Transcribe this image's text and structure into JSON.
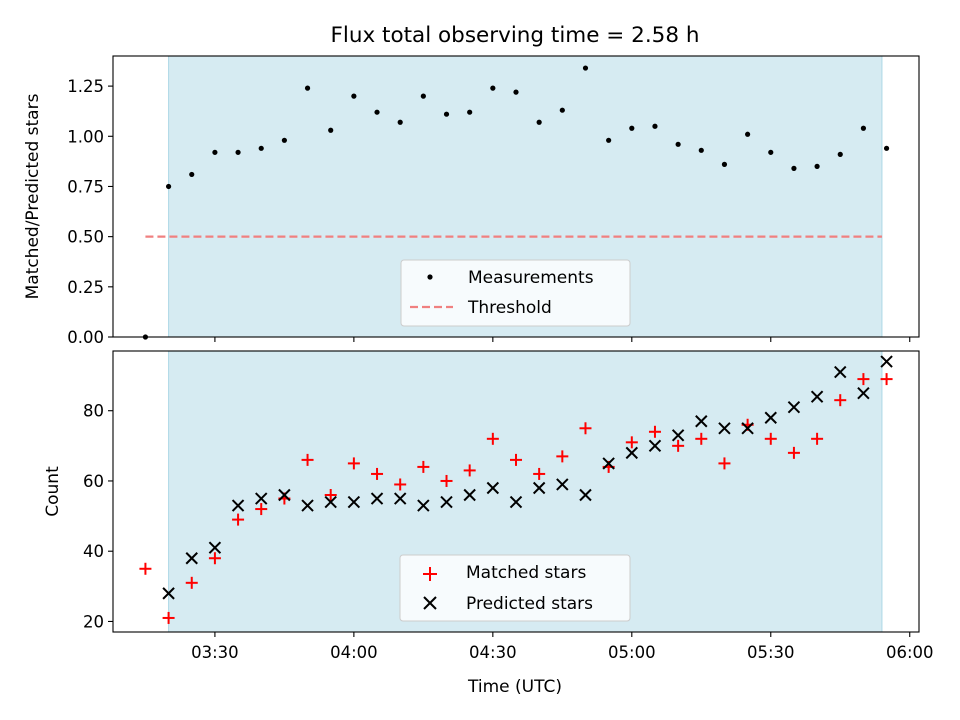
{
  "figure": {
    "title": "Flux total observing time = 2.58 h",
    "xlabel": "Time (UTC)"
  },
  "colors": {
    "shade": "#add8e6",
    "measurement": "#000000",
    "threshold": "#f08080",
    "matched": "#ff0000",
    "predicted": "#000000"
  },
  "chart_data": [
    {
      "type": "scatter",
      "ylabel": "Matched/Predicted stars",
      "ylim": [
        0,
        1.4
      ],
      "yticks": [
        0.0,
        0.25,
        0.5,
        0.75,
        1.0,
        1.25
      ],
      "ytick_labels": [
        "0.00",
        "0.25",
        "0.50",
        "0.75",
        "1.00",
        "1.25"
      ],
      "xlim": [
        "03:08",
        "06:02"
      ],
      "xticks": [
        "03:30",
        "04:00",
        "04:30",
        "05:00",
        "05:30",
        "06:00"
      ],
      "shaded_span": [
        "03:20",
        "05:54"
      ],
      "legend": {
        "position": "lower center",
        "entries": [
          "Measurements",
          "Threshold"
        ]
      },
      "threshold": {
        "name": "Threshold",
        "value": 0.5,
        "x": [
          "03:15",
          "05:54"
        ],
        "style": "dashed"
      },
      "series": [
        {
          "name": "Measurements",
          "x": [
            "03:15",
            "03:20",
            "03:25",
            "03:30",
            "03:35",
            "03:40",
            "03:45",
            "03:50",
            "03:55",
            "04:00",
            "04:05",
            "04:10",
            "04:15",
            "04:20",
            "04:25",
            "04:30",
            "04:35",
            "04:40",
            "04:45",
            "04:50",
            "04:55",
            "05:00",
            "05:05",
            "05:10",
            "05:15",
            "05:20",
            "05:25",
            "05:30",
            "05:35",
            "05:40",
            "05:45",
            "05:50",
            "05:55"
          ],
          "y": [
            0.0,
            0.75,
            0.81,
            0.92,
            0.92,
            0.94,
            0.98,
            1.24,
            1.03,
            1.2,
            1.12,
            1.07,
            1.2,
            1.11,
            1.12,
            1.24,
            1.22,
            1.07,
            1.13,
            1.34,
            0.98,
            1.04,
            1.05,
            0.96,
            0.93,
            0.86,
            1.01,
            0.92,
            0.84,
            0.85,
            0.91,
            1.04,
            0.94
          ]
        }
      ]
    },
    {
      "type": "scatter",
      "ylabel": "Count",
      "ylim": [
        17,
        97
      ],
      "yticks": [
        20,
        40,
        60,
        80
      ],
      "ytick_labels": [
        "20",
        "40",
        "60",
        "80"
      ],
      "xlim": [
        "03:08",
        "06:02"
      ],
      "xticks": [
        "03:30",
        "04:00",
        "04:30",
        "05:00",
        "05:30",
        "06:00"
      ],
      "xtick_labels": [
        "03:30",
        "04:00",
        "04:30",
        "05:00",
        "05:30",
        "06:00"
      ],
      "shaded_span": [
        "03:20",
        "05:54"
      ],
      "legend": {
        "position": "lower center",
        "entries": [
          "Matched stars",
          "Predicted stars"
        ]
      },
      "series": [
        {
          "name": "Matched stars",
          "marker": "plus",
          "x": [
            "03:15",
            "03:20",
            "03:25",
            "03:30",
            "03:35",
            "03:40",
            "03:45",
            "03:50",
            "03:55",
            "04:00",
            "04:05",
            "04:10",
            "04:15",
            "04:20",
            "04:25",
            "04:30",
            "04:35",
            "04:40",
            "04:45",
            "04:50",
            "04:55",
            "05:00",
            "05:05",
            "05:10",
            "05:15",
            "05:20",
            "05:25",
            "05:30",
            "05:35",
            "05:40",
            "05:45",
            "05:50",
            "05:55"
          ],
          "y": [
            35,
            21,
            31,
            38,
            49,
            52,
            55,
            66,
            56,
            65,
            62,
            59,
            64,
            60,
            63,
            72,
            66,
            62,
            67,
            75,
            64,
            71,
            74,
            70,
            72,
            65,
            76,
            72,
            68,
            72,
            83,
            89,
            89
          ]
        },
        {
          "name": "Predicted stars",
          "marker": "x",
          "x": [
            "03:20",
            "03:25",
            "03:30",
            "03:35",
            "03:40",
            "03:45",
            "03:50",
            "03:55",
            "04:00",
            "04:05",
            "04:10",
            "04:15",
            "04:20",
            "04:25",
            "04:30",
            "04:35",
            "04:40",
            "04:45",
            "04:50",
            "04:55",
            "05:00",
            "05:05",
            "05:10",
            "05:15",
            "05:20",
            "05:25",
            "05:30",
            "05:35",
            "05:40",
            "05:45",
            "05:50",
            "05:55"
          ],
          "y": [
            28,
            38,
            41,
            53,
            55,
            56,
            53,
            54,
            54,
            55,
            55,
            53,
            54,
            56,
            58,
            54,
            58,
            59,
            56,
            65,
            68,
            70,
            73,
            77,
            75,
            75,
            78,
            81,
            84,
            91,
            85,
            94
          ]
        }
      ]
    }
  ]
}
